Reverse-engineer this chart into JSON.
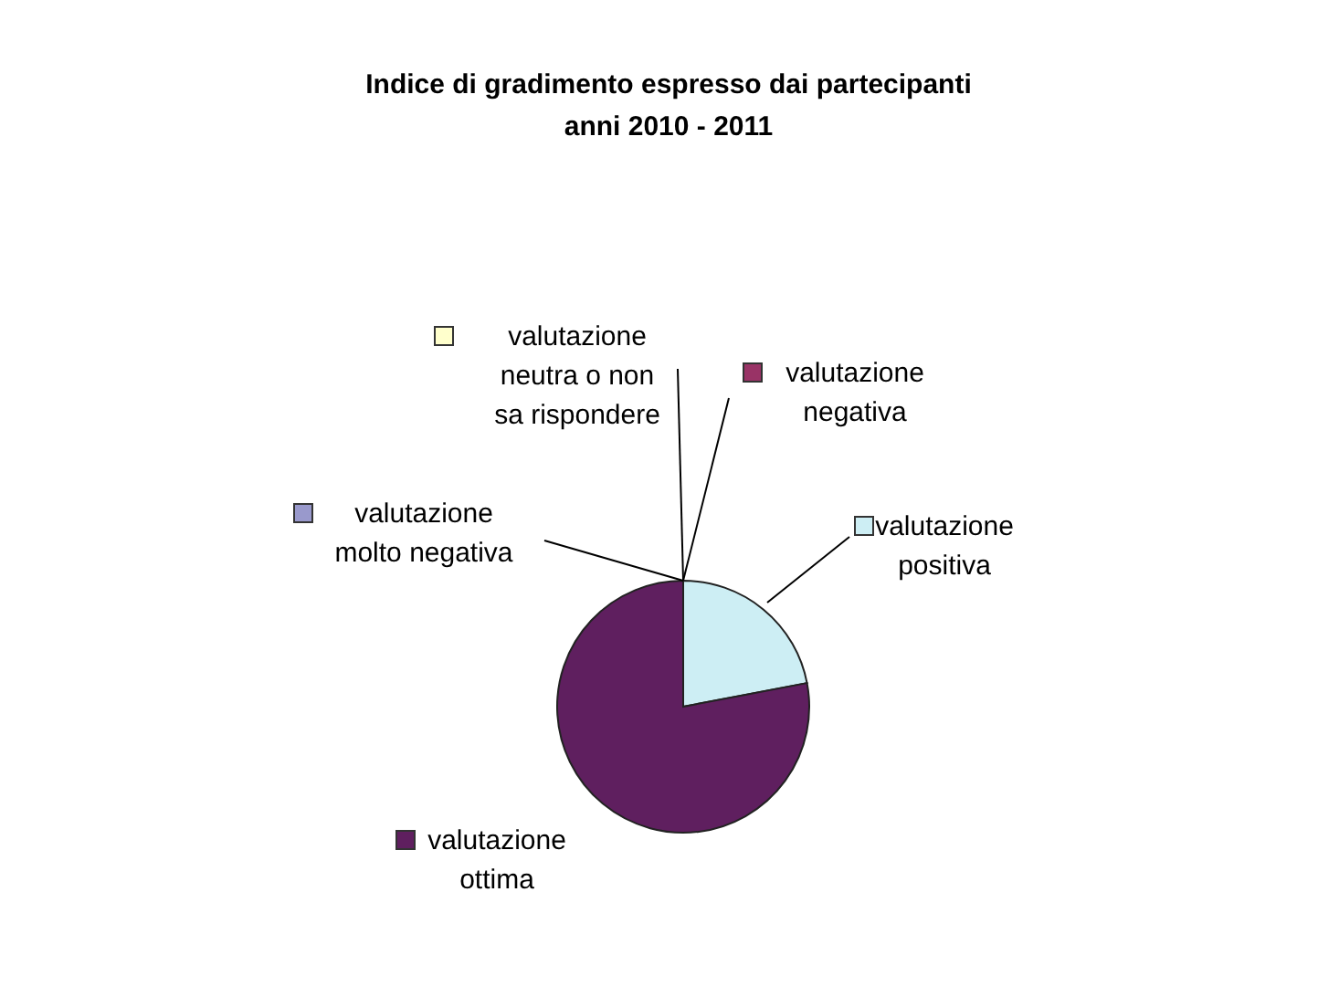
{
  "chart_data": {
    "type": "pie",
    "title": [
      "Indice di gradimento espresso dai partecipanti",
      "anni 2010 - 2011"
    ],
    "categories": [
      "valutazione positiva",
      "valutazione ottima",
      "valutazione molto negativa",
      "valutazione neutra o non sa rispondere",
      "valutazione negativa"
    ],
    "values": [
      22,
      78,
      0,
      0,
      0
    ],
    "colors": [
      "#cdeef4",
      "#5f1f5f",
      "#9999cc",
      "#ffffcc",
      "#993366"
    ],
    "legend": "top"
  }
}
